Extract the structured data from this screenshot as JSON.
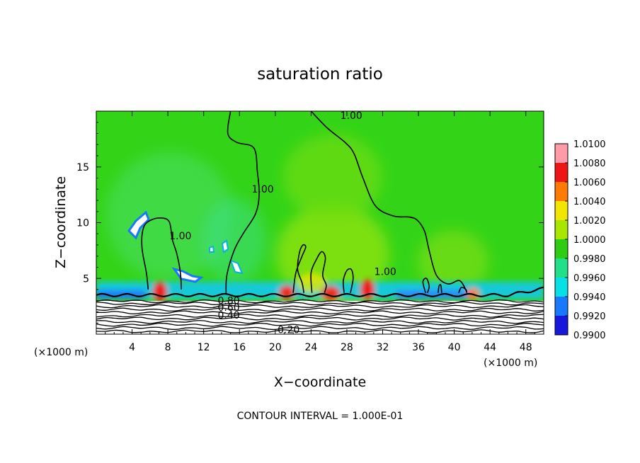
{
  "chart_data": {
    "type": "heatmap",
    "title": "saturation ratio",
    "xlabel": "X−coordinate",
    "ylabel": "Z−coordinate",
    "x_unit_left": "(×1000 m)",
    "x_unit_right": "(×1000 m)",
    "xlim": [
      0,
      50
    ],
    "ylim": [
      0,
      20
    ],
    "x_ticks": [
      4,
      8,
      12,
      16,
      20,
      24,
      28,
      32,
      36,
      40,
      44,
      48
    ],
    "y_ticks": [
      5,
      10,
      15
    ],
    "colorbar": {
      "levels": [
        "1.0100",
        "1.0080",
        "1.0060",
        "1.0040",
        "1.0020",
        "1.0000",
        "0.9980",
        "0.9960",
        "0.9940",
        "0.9920",
        "0.9900"
      ],
      "colors": [
        "#ff9aa8",
        "#ee1515",
        "#ff7a00",
        "#f2e600",
        "#a8e600",
        "#2fcc14",
        "#22e08a",
        "#08e0e6",
        "#1a78ff",
        "#1818dd",
        "#7a1aa0"
      ]
    },
    "contour_interval_text": "CONTOUR INTERVAL = 1.000E-01",
    "contour_labels": [
      {
        "text": "1.00",
        "x": 28.5,
        "y": 19.3
      },
      {
        "text": "1.00",
        "x": 18.6,
        "y": 12.7
      },
      {
        "text": "1.00",
        "x": 9.4,
        "y": 8.5
      },
      {
        "text": "1.00",
        "x": 32.3,
        "y": 5.3
      },
      {
        "text": "0.80",
        "x": 14.8,
        "y": 2.7
      },
      {
        "text": "0.60",
        "x": 14.8,
        "y": 2.1
      },
      {
        "text": "0.40",
        "x": 14.8,
        "y": 1.4
      },
      {
        "text": "0.20",
        "x": 21.5,
        "y": 0.1
      }
    ],
    "contours_1_00": [
      [
        [
          15.0,
          20.0
        ],
        [
          14.7,
          18.0
        ],
        [
          15.7,
          17.2
        ],
        [
          17.6,
          16.7
        ],
        [
          18.0,
          14.6
        ],
        [
          18.2,
          12.5
        ],
        [
          17.8,
          10.8
        ],
        [
          16.4,
          9.0
        ],
        [
          15.4,
          7.5
        ],
        [
          14.6,
          5.3
        ],
        [
          14.5,
          3.7
        ]
      ],
      [
        [
          24.0,
          20.0
        ],
        [
          25.8,
          18.5
        ],
        [
          27.8,
          17.2
        ],
        [
          28.8,
          16.2
        ],
        [
          29.8,
          14.0
        ],
        [
          31.2,
          11.5
        ],
        [
          33.2,
          10.6
        ],
        [
          35.0,
          10.5
        ],
        [
          35.9,
          10.2
        ],
        [
          36.7,
          9.2
        ],
        [
          37.2,
          7.5
        ],
        [
          38.0,
          5.3
        ],
        [
          39.3,
          4.5
        ],
        [
          40.6,
          4.8
        ],
        [
          41.4,
          3.8
        ]
      ],
      [
        [
          22.0,
          3.7
        ],
        [
          22.3,
          5.5
        ],
        [
          23.0,
          7.0
        ],
        [
          23.4,
          7.8
        ],
        [
          23.1,
          8.0
        ],
        [
          22.7,
          7.3
        ],
        [
          22.5,
          5.8
        ],
        [
          23.0,
          4.6
        ],
        [
          23.2,
          3.7
        ]
      ],
      [
        [
          5.8,
          4.0
        ],
        [
          5.6,
          5.5
        ],
        [
          5.1,
          7.8
        ],
        [
          5.3,
          9.6
        ],
        [
          6.3,
          10.3
        ],
        [
          7.5,
          10.4
        ],
        [
          8.2,
          10.0
        ],
        [
          8.5,
          8.5
        ],
        [
          9.0,
          7.2
        ],
        [
          9.4,
          5.5
        ],
        [
          9.5,
          4.0
        ]
      ],
      [
        [
          24.1,
          3.7
        ],
        [
          24.0,
          5.5
        ],
        [
          24.6,
          6.7
        ],
        [
          25.2,
          7.4
        ],
        [
          25.6,
          6.8
        ],
        [
          25.3,
          5.3
        ],
        [
          25.7,
          4.4
        ],
        [
          25.5,
          3.7
        ]
      ],
      [
        [
          27.7,
          3.7
        ],
        [
          27.6,
          4.8
        ],
        [
          28.0,
          5.7
        ],
        [
          28.5,
          5.8
        ],
        [
          28.7,
          5.0
        ],
        [
          28.4,
          3.7
        ]
      ],
      [
        [
          36.8,
          3.7
        ],
        [
          36.5,
          4.7
        ],
        [
          36.9,
          5.0
        ],
        [
          37.2,
          4.3
        ],
        [
          37.0,
          3.7
        ]
      ],
      [
        [
          38.2,
          3.7
        ],
        [
          38.3,
          4.3
        ],
        [
          38.5,
          4.4
        ],
        [
          38.6,
          3.7
        ]
      ],
      [
        [
          40.5,
          3.7
        ],
        [
          40.8,
          4.2
        ],
        [
          41.3,
          4.0
        ],
        [
          41.4,
          3.7
        ]
      ]
    ]
  }
}
